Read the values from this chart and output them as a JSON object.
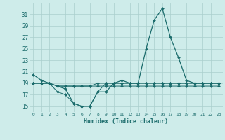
{
  "xlabel": "Humidex (Indice chaleur)",
  "bg_color": "#ceecea",
  "grid_color": "#aacfcd",
  "line_color": "#1a6b6b",
  "x": [
    0,
    1,
    2,
    3,
    4,
    5,
    6,
    7,
    8,
    9,
    10,
    11,
    12,
    13,
    14,
    15,
    16,
    17,
    18,
    19,
    20,
    21,
    22,
    23
  ],
  "line1": [
    20.5,
    19.5,
    19.0,
    18.5,
    18.0,
    15.5,
    15.0,
    15.0,
    17.5,
    17.5,
    19.0,
    19.5,
    19.0,
    19.0,
    25.0,
    30.0,
    32.0,
    27.0,
    23.5,
    19.5,
    19.0,
    19.0,
    19.0,
    19.0
  ],
  "line2": [
    19.0,
    19.0,
    19.0,
    18.5,
    18.5,
    18.5,
    18.5,
    18.5,
    19.0,
    19.0,
    19.0,
    19.0,
    19.0,
    19.0,
    19.0,
    19.0,
    19.0,
    19.0,
    19.0,
    19.0,
    19.0,
    19.0,
    19.0,
    19.0
  ],
  "line3": [
    19.0,
    19.0,
    19.0,
    17.5,
    17.0,
    15.5,
    15.0,
    15.0,
    17.5,
    19.0,
    19.0,
    19.0,
    19.0,
    19.0,
    19.0,
    19.0,
    19.0,
    19.0,
    19.0,
    19.0,
    19.0,
    19.0,
    19.0,
    19.0
  ],
  "line4": [
    19.0,
    19.0,
    19.0,
    18.5,
    18.5,
    18.5,
    18.5,
    18.5,
    18.5,
    18.5,
    18.5,
    18.5,
    18.5,
    18.5,
    18.5,
    18.5,
    18.5,
    18.5,
    18.5,
    18.5,
    18.5,
    18.5,
    18.5,
    18.5
  ],
  "ylim": [
    14,
    33
  ],
  "yticks": [
    15,
    17,
    19,
    21,
    23,
    25,
    27,
    29,
    31
  ],
  "xticks": [
    0,
    1,
    2,
    3,
    4,
    5,
    6,
    7,
    8,
    9,
    10,
    11,
    12,
    13,
    14,
    15,
    16,
    17,
    18,
    19,
    20,
    21,
    22,
    23
  ],
  "xtick_labels": [
    "0",
    "1",
    "2",
    "3",
    "4",
    "5",
    "6",
    "7",
    "8",
    "9",
    "10",
    "11",
    "12",
    "13",
    "14",
    "15",
    "16",
    "17",
    "18",
    "19",
    "20",
    "21",
    "22",
    "23"
  ]
}
